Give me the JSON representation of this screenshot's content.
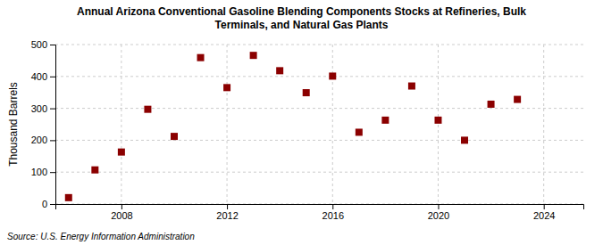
{
  "chart_data": {
    "type": "scatter",
    "title": "Annual Arizona Conventional Gasoline Blending Components Stocks at Refineries, Bulk\nTerminals, and Natural Gas Plants",
    "ylabel": "Thousand Barrels",
    "annotations": [
      "Source: U.S. Energy Information Administration"
    ],
    "x": [
      2006,
      2007,
      2008,
      2009,
      2010,
      2011,
      2012,
      2013,
      2014,
      2015,
      2016,
      2017,
      2018,
      2019,
      2020,
      2021,
      2022,
      2023
    ],
    "values": [
      20,
      107,
      163,
      297,
      212,
      459,
      365,
      466,
      418,
      349,
      401,
      225,
      263,
      370,
      263,
      200,
      313,
      328
    ],
    "color": "#8B0000",
    "marker": "square",
    "xlim": [
      2005.5,
      2025.5
    ],
    "xticks": [
      2008,
      2012,
      2016,
      2020,
      2024
    ],
    "ylim": [
      0,
      500
    ],
    "yticks": [
      0,
      100,
      200,
      300,
      400,
      500
    ],
    "grid": true
  }
}
